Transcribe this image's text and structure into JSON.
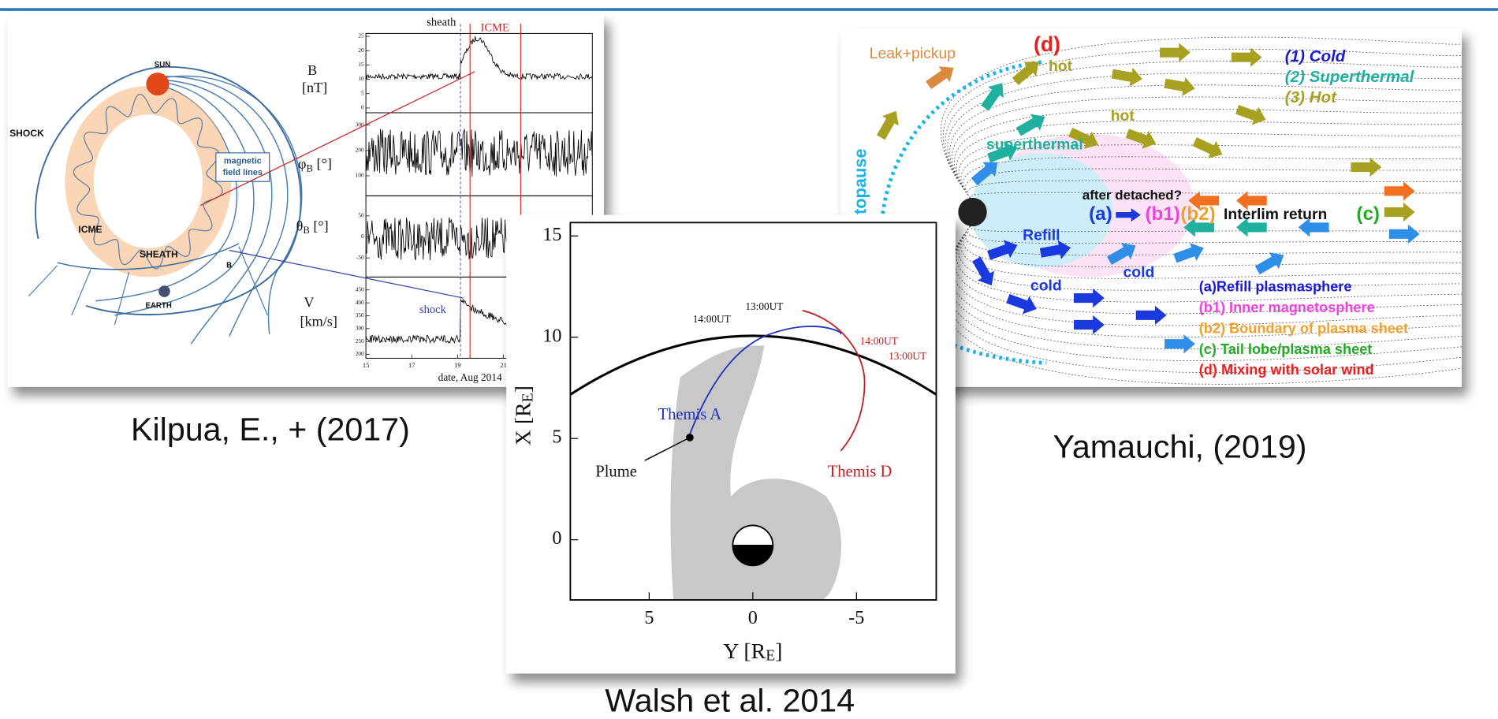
{
  "figures": {
    "kilpua": {
      "caption": "Kilpua, E., + (2017)",
      "diagram": {
        "sun": "SUN",
        "shock": "SHOCK",
        "field_lines": [
          "magnetic",
          "field lines"
        ],
        "icme": "ICME",
        "sheath": "SHEATH",
        "b": "B",
        "earth": "EARTH"
      },
      "plot": {
        "sheath": "sheath",
        "icme": "ICME",
        "shock": "shock",
        "x_label": "date, Aug 2014",
        "xticks": [
          15,
          17,
          19,
          21
        ],
        "panels": [
          {
            "label": "B",
            "unit": "[nT]",
            "ticks": [
              0,
              5,
              10,
              15,
              20,
              25
            ]
          },
          {
            "label": "φ",
            "sub": "B",
            "unit": " [°]",
            "ticks": [
              100,
              200,
              300
            ]
          },
          {
            "label": "θ",
            "sub": "B",
            "unit": " [°]",
            "ticks": [
              -50,
              0,
              50
            ]
          },
          {
            "label": "V",
            "unit": "[km/s]",
            "ticks": [
              200,
              250,
              300,
              350,
              400,
              450
            ]
          }
        ]
      }
    },
    "walsh": {
      "caption": "Walsh et al. 2014",
      "xticks": [
        5,
        0,
        -5
      ],
      "yticks": [
        0,
        5,
        10,
        15
      ],
      "x_label": {
        "text": "Y [R",
        "sub": "E",
        "close": "]"
      },
      "y_label": {
        "text": "X [R",
        "sub": "E",
        "close": "]"
      },
      "themis_a": "Themis A",
      "themis_d": "Themis D",
      "plume": "Plume",
      "times": [
        "13:00UT",
        "14:00UT",
        "14:00UT",
        "13:00UT"
      ]
    },
    "yamauchi": {
      "caption": "Yamauchi, (2019)",
      "labels": {
        "leak": "Leak+pickup",
        "d": "(d)",
        "hot_top": "hot",
        "hot_mid": "hot",
        "superthermal": "superthermal",
        "magnetopause": "topause",
        "after_detached": "after detached?",
        "a": "(a)",
        "b1": "(b1)",
        "b2": "(b2)",
        "interlim": "Interlim return",
        "c": "(c)",
        "refill": "Refill",
        "cold_left": "cold",
        "cold_mid": "cold"
      },
      "key": [
        "(1) Cold",
        "(2) Superthermal",
        "(3) Hot"
      ],
      "legend": [
        "(a)Refill plasmasphere",
        "(b1) Inner magnetosphere",
        "(b2) Boundary of plasma sheet",
        "(c) Tail lobe/plasma sheet",
        "(d) Mixing with solar wind"
      ]
    }
  }
}
